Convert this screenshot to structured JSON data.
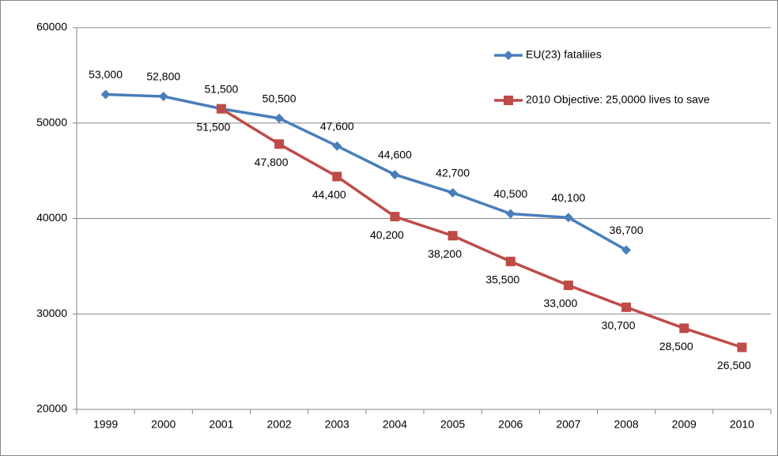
{
  "chart_data": {
    "type": "line",
    "categories": [
      "1999",
      "2000",
      "2001",
      "2002",
      "2003",
      "2004",
      "2005",
      "2006",
      "2007",
      "2008",
      "2009",
      "2010"
    ],
    "series": [
      {
        "name": "EU(23) fataliies",
        "color": "#4a7ebb",
        "marker": "diamond",
        "label_side": "above",
        "values": [
          53000,
          52800,
          51500,
          50500,
          47600,
          44600,
          42700,
          40500,
          40100,
          36700,
          null,
          null
        ],
        "value_labels": [
          "53,000",
          "52,800",
          "51,500",
          "50,500",
          "47,600",
          "44,600",
          "42,700",
          "40,500",
          "40,100",
          "36,700",
          null,
          null
        ]
      },
      {
        "name": "2010 Objective: 25,0000 lives to save",
        "color": "#be4b48",
        "marker": "square",
        "label_side": "below",
        "values": [
          null,
          null,
          51500,
          47800,
          44400,
          40200,
          38200,
          35500,
          33000,
          30700,
          28500,
          26500
        ],
        "value_labels": [
          null,
          null,
          "51,500",
          "47,800",
          "44,400",
          "40,200",
          "38,200",
          "35,500",
          "33,000",
          "30,700",
          "28,500",
          "26,500"
        ]
      }
    ],
    "ylim": [
      20000,
      60000
    ],
    "yticks": [
      20000,
      30000,
      40000,
      50000,
      60000
    ],
    "grid": true,
    "legend": "upper right"
  }
}
